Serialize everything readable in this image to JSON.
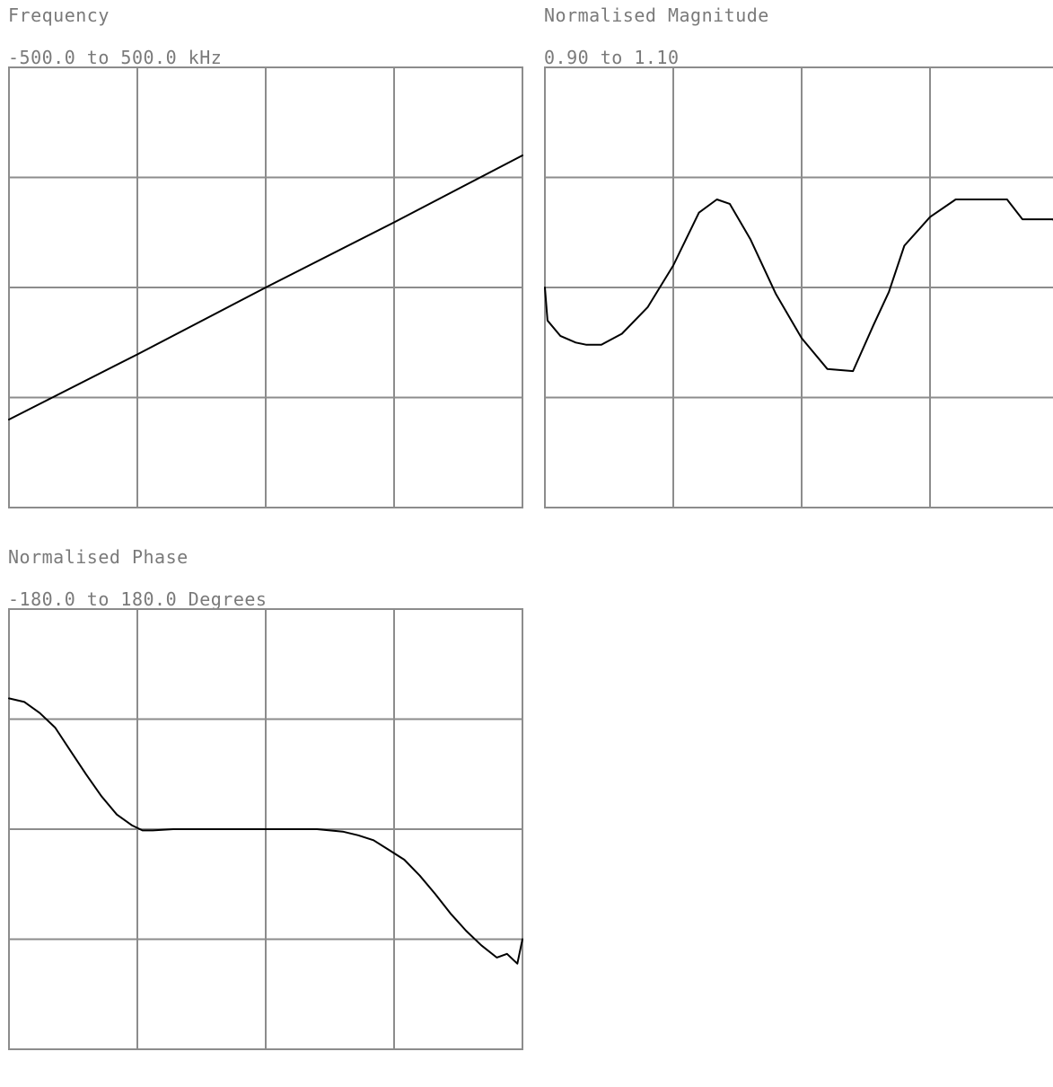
{
  "colors": {
    "background": "#ffffff",
    "grid": "#8c8c8c",
    "trace": "#000000",
    "label": "#7a7a7a"
  },
  "panels": {
    "frequency": {
      "title": "Frequency",
      "range": "-500.0 to 500.0 kHz"
    },
    "magnitude": {
      "title": "Normalised Magnitude",
      "range": "0.90 to 1.10"
    },
    "phase": {
      "title": "Normalised Phase",
      "range": "-180.0 to 180.0 Degrees"
    }
  },
  "chart_data": [
    {
      "type": "line",
      "title": "Frequency",
      "subtitle": "-500.0 to 500.0 kHz",
      "ylim": [
        -500.0,
        500.0
      ],
      "xlim": [
        0,
        1
      ],
      "grid": true,
      "series": [
        {
          "x": [
            0,
            0.25,
            0.5,
            0.75,
            1.0
          ],
          "y": [
            -300,
            -152,
            0,
            148,
            300
          ]
        }
      ]
    },
    {
      "type": "line",
      "title": "Normalised Magnitude",
      "subtitle": "0.90 to 1.10",
      "ylim": [
        0.9,
        1.1
      ],
      "xlim": [
        0,
        1
      ],
      "grid": true,
      "series": [
        {
          "x": [
            0,
            0.005,
            0.03,
            0.06,
            0.08,
            0.11,
            0.15,
            0.2,
            0.25,
            0.3,
            0.335,
            0.36,
            0.4,
            0.45,
            0.5,
            0.55,
            0.6,
            0.64,
            0.67,
            0.7,
            0.75,
            0.8,
            0.85,
            0.9,
            0.93,
            0.96,
            0.99,
            1.0
          ],
          "y": [
            1.0,
            0.985,
            0.978,
            0.975,
            0.974,
            0.974,
            0.979,
            0.991,
            1.01,
            1.034,
            1.04,
            1.038,
            1.022,
            0.997,
            0.977,
            0.963,
            0.962,
            0.983,
            0.998,
            1.019,
            1.032,
            1.04,
            1.04,
            1.04,
            1.031,
            1.031,
            1.031,
            1.024
          ]
        }
      ]
    },
    {
      "type": "line",
      "title": "Normalised Phase",
      "subtitle": "-180.0 to 180.0 Degrees",
      "ylim": [
        -180.0,
        180.0
      ],
      "xlim": [
        0,
        1
      ],
      "grid": true,
      "series": [
        {
          "x": [
            0,
            0.03,
            0.06,
            0.09,
            0.12,
            0.15,
            0.18,
            0.21,
            0.24,
            0.26,
            0.28,
            0.32,
            0.36,
            0.4,
            0.45,
            0.5,
            0.55,
            0.6,
            0.65,
            0.68,
            0.71,
            0.74,
            0.77,
            0.8,
            0.83,
            0.86,
            0.89,
            0.92,
            0.95,
            0.97,
            0.98,
            0.99,
            1.0
          ],
          "y": [
            107,
            104,
            95,
            83,
            64,
            45,
            27,
            12,
            3,
            -1,
            -1,
            0,
            0,
            0,
            0,
            0,
            0,
            0,
            -2,
            -5,
            -9,
            -17,
            -25,
            -38,
            -53,
            -69,
            -83,
            -95,
            -105,
            -102,
            -106,
            -110,
            -90
          ]
        }
      ]
    }
  ]
}
